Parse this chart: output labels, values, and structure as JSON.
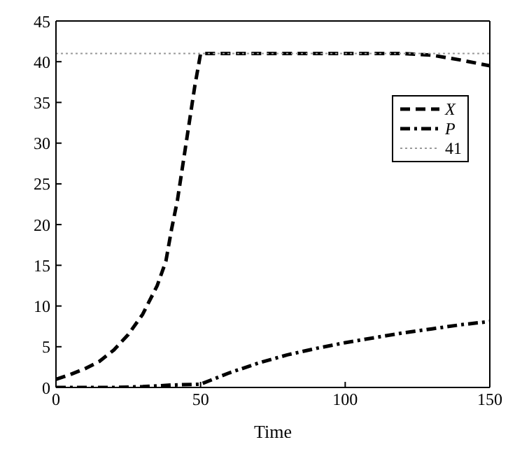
{
  "chart_data": {
    "type": "line",
    "xlabel": "Time",
    "xlim": [
      0,
      150
    ],
    "xticks": [
      0,
      50,
      100,
      150
    ],
    "ylim": [
      0,
      45
    ],
    "yticks": [
      0,
      5,
      10,
      15,
      20,
      25,
      30,
      35,
      40,
      45
    ],
    "legend": "right",
    "marker": "none",
    "series": [
      {
        "name": "X",
        "color": "#000000",
        "line_style": "dashed",
        "x": [
          0,
          5,
          10,
          15,
          20,
          25,
          30,
          35,
          38,
          40,
          42,
          45,
          48,
          50,
          60,
          70,
          80,
          90,
          100,
          110,
          120,
          130,
          140,
          150
        ],
        "values": [
          1,
          1.6,
          2.3,
          3.2,
          4.6,
          6.5,
          9,
          12.5,
          15.5,
          19.5,
          23,
          30,
          37,
          41,
          41,
          41,
          41,
          41,
          41,
          41,
          41,
          40.8,
          40.2,
          39.5
        ]
      },
      {
        "name": "P",
        "color": "#000000",
        "line_style": "dashdot",
        "x": [
          0,
          20,
          30,
          40,
          50,
          60,
          70,
          80,
          90,
          100,
          110,
          120,
          130,
          140,
          150
        ],
        "values": [
          0,
          0,
          0.1,
          0.3,
          0.4,
          1.8,
          3,
          4,
          4.8,
          5.5,
          6.1,
          6.7,
          7.2,
          7.7,
          8.1
        ]
      },
      {
        "name": "41",
        "color": "#999999",
        "line_style": "dotted",
        "x": [
          0,
          150
        ],
        "values": [
          41,
          41
        ]
      }
    ]
  }
}
